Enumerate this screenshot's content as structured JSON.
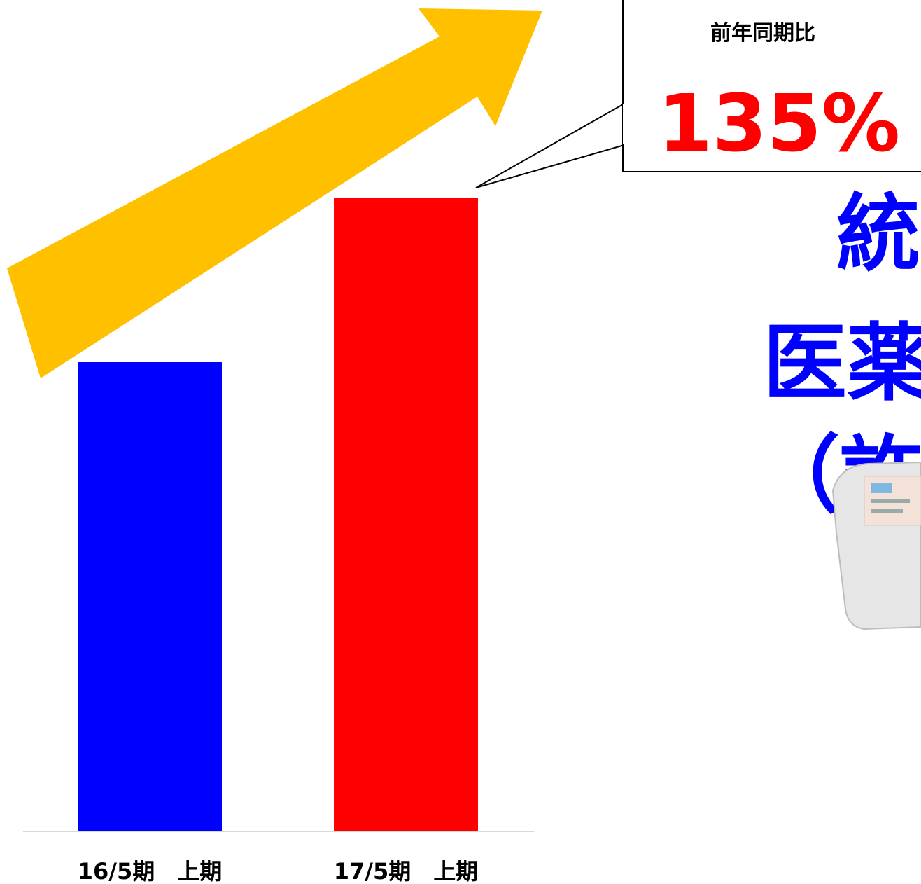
{
  "chart_data": {
    "type": "bar",
    "categories": [
      "16/5期　上期",
      "17/5期　上期"
    ],
    "values": [
      100,
      135
    ],
    "colors": [
      "#0000ff",
      "#ff0000"
    ],
    "callout_title": "前年同期比",
    "callout_value": "135%",
    "side_text": [
      "統",
      "医薬",
      "（許"
    ]
  }
}
